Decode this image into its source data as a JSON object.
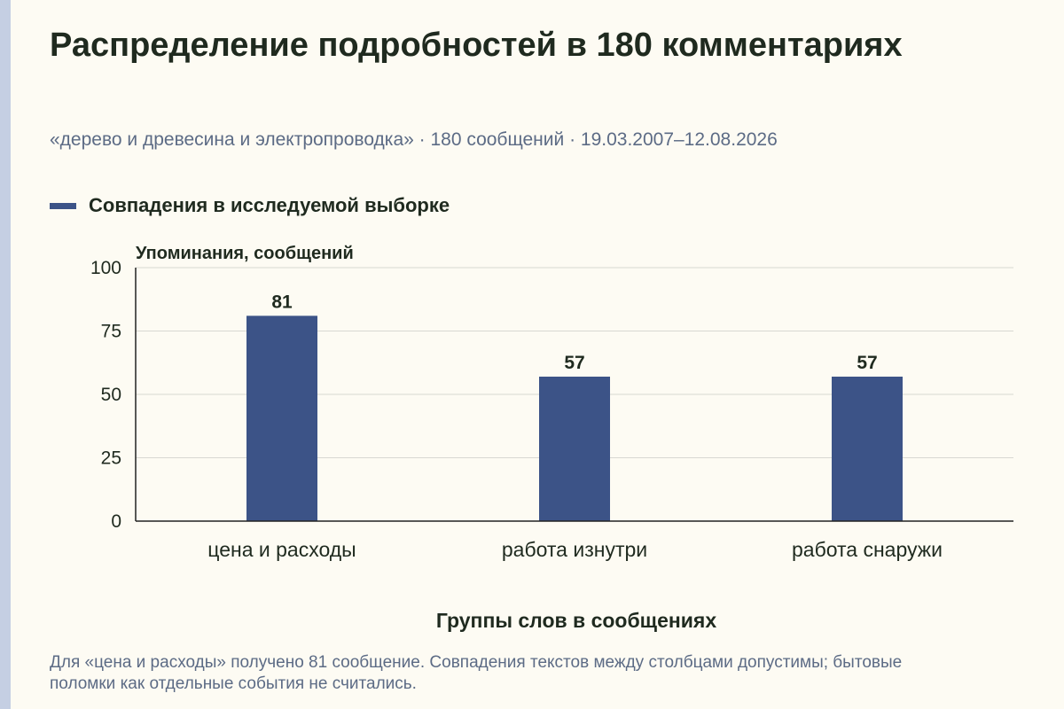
{
  "header": {
    "title": "Распределение подробностей в 180 комментариях",
    "subtitle": "«дерево и древесина и электропроводка» · 180 сообщений · 19.03.2007–12.08.2026"
  },
  "legend": {
    "label": "Совпадения в исследуемой выборке"
  },
  "colors": {
    "bar": "#3c5387",
    "background": "#fdfbf3",
    "text": "#1f2a1f",
    "muted_text": "#5c6b85",
    "grid": "#d8d8d2",
    "axis": "#222222"
  },
  "chart_data": {
    "type": "bar",
    "categories": [
      "цена и расходы",
      "работа изнутри",
      "работа снаружи"
    ],
    "series": [
      {
        "name": "Совпадения в исследуемой выборке",
        "values": [
          81,
          57,
          57
        ]
      }
    ],
    "ylabel": "Упоминания, сообщений",
    "xlabel": "Группы слов в сообщениях",
    "ylim": [
      0,
      100
    ],
    "yticks": [
      0,
      25,
      50,
      75,
      100
    ],
    "grid": true,
    "data_labels": true,
    "legend_position": "top-left"
  },
  "footer": {
    "note": "Для «цена и расходы» получено 81 сообщение. Совпадения текстов между столбцами допустимы; бытовые поломки как отдельные события не считались."
  }
}
